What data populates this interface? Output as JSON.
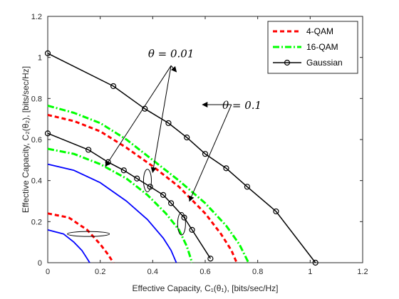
{
  "chart_data": {
    "type": "line",
    "xlabel": "Effective Capacity, C₁(θ₁),  [bits/sec/Hz]",
    "ylabel": "Effective Capacity, C₂(θ₂),  [bits/sec/Hz]",
    "xlim": [
      0,
      1.2
    ],
    "ylim": [
      0,
      1.2
    ],
    "xticks": [
      "0",
      "0.2",
      "0.4",
      "0.6",
      "0.8",
      "1",
      "1.2"
    ],
    "yticks": [
      "0",
      "0.2",
      "0.4",
      "0.6",
      "0.8",
      "1",
      "1.2"
    ],
    "grid": false,
    "legend_position": "top-right",
    "legend": [
      {
        "label": "4-QAM",
        "color": "#ff0000",
        "style": "dashed"
      },
      {
        "label": "16-QAM",
        "color": "#00ff00",
        "style": "dashdot"
      },
      {
        "label": "Gaussian",
        "color": "#000000",
        "style": "solid-marker"
      }
    ],
    "series": [
      {
        "name": "Gaussian",
        "color": "#000000",
        "style": "solid-marker",
        "x": [
          0,
          0.25,
          0.37,
          0.46,
          0.53,
          0.6,
          0.68,
          0.76,
          0.87,
          1.02
        ],
        "y": [
          1.02,
          0.86,
          0.75,
          0.68,
          0.61,
          0.53,
          0.46,
          0.37,
          0.25,
          0
        ]
      },
      {
        "name": "Gaussian",
        "color": "#000000",
        "style": "solid-marker",
        "x": [
          0,
          0.155,
          0.23,
          0.29,
          0.34,
          0.39,
          0.44,
          0.47,
          0.52,
          0.55,
          0.62
        ],
        "y": [
          0.63,
          0.55,
          0.49,
          0.45,
          0.41,
          0.37,
          0.33,
          0.29,
          0.22,
          0.16,
          0.02
        ]
      },
      {
        "name": "4-QAM",
        "color": "#ff0000",
        "style": "dashed",
        "x": [
          0,
          0.1,
          0.2,
          0.3,
          0.4,
          0.5,
          0.6,
          0.66,
          0.7,
          0.72
        ],
        "y": [
          0.72,
          0.69,
          0.64,
          0.56,
          0.47,
          0.37,
          0.24,
          0.14,
          0.06,
          0
        ]
      },
      {
        "name": "4-QAM",
        "color": "#ff0000",
        "style": "dashed",
        "x": [
          0,
          0.08,
          0.15,
          0.2,
          0.23,
          0.25
        ],
        "y": [
          0.24,
          0.22,
          0.16,
          0.09,
          0.04,
          0
        ]
      },
      {
        "name": "16-QAM",
        "color": "#00ff00",
        "style": "dashdot",
        "x": [
          0,
          0.1,
          0.2,
          0.3,
          0.4,
          0.5,
          0.6,
          0.68,
          0.73,
          0.765
        ],
        "y": [
          0.765,
          0.73,
          0.68,
          0.6,
          0.5,
          0.4,
          0.29,
          0.18,
          0.09,
          0
        ]
      },
      {
        "name": "16-QAM",
        "color": "#00ff00",
        "style": "dashdot",
        "x": [
          0,
          0.1,
          0.2,
          0.3,
          0.38,
          0.45,
          0.5,
          0.53,
          0.55
        ],
        "y": [
          0.555,
          0.53,
          0.48,
          0.41,
          0.33,
          0.24,
          0.16,
          0.08,
          0
        ]
      },
      {
        "name": "",
        "color": "#0000ff",
        "style": "solid",
        "x": [
          0,
          0.1,
          0.2,
          0.3,
          0.38,
          0.44,
          0.47,
          0.49
        ],
        "y": [
          0.48,
          0.45,
          0.39,
          0.3,
          0.21,
          0.12,
          0.06,
          0
        ]
      },
      {
        "name": "",
        "color": "#0000ff",
        "style": "solid",
        "x": [
          0,
          0.06,
          0.1,
          0.13,
          0.15,
          0.16
        ],
        "y": [
          0.16,
          0.14,
          0.1,
          0.06,
          0.02,
          0
        ]
      }
    ],
    "annotations": [
      {
        "text": "θ = 0.01",
        "at": [
          0.47,
          1.0
        ]
      },
      {
        "text": "θ = 0.1",
        "at": [
          0.74,
          0.75
        ]
      }
    ],
    "arrows": [
      {
        "from": [
          0.47,
          0.96
        ],
        "to": [
          0.4,
          0.44
        ]
      },
      {
        "from": [
          0.47,
          0.96
        ],
        "to": [
          0.22,
          0.47
        ]
      },
      {
        "from": [
          0.47,
          0.96
        ],
        "to": [
          0.49,
          0.93
        ]
      },
      {
        "from": [
          0.7,
          0.77
        ],
        "to": [
          0.54,
          0.3
        ]
      },
      {
        "from": [
          0.7,
          0.77
        ],
        "to": [
          0.59,
          0.77
        ]
      }
    ],
    "ellipses": [
      {
        "center": [
          0.38,
          0.4
        ],
        "rx": 0.015,
        "ry": 0.055
      },
      {
        "center": [
          0.51,
          0.19
        ],
        "rx": 0.015,
        "ry": 0.055
      },
      {
        "center": [
          0.155,
          0.14
        ],
        "rx": 0.08,
        "ry": 0.012
      }
    ]
  }
}
